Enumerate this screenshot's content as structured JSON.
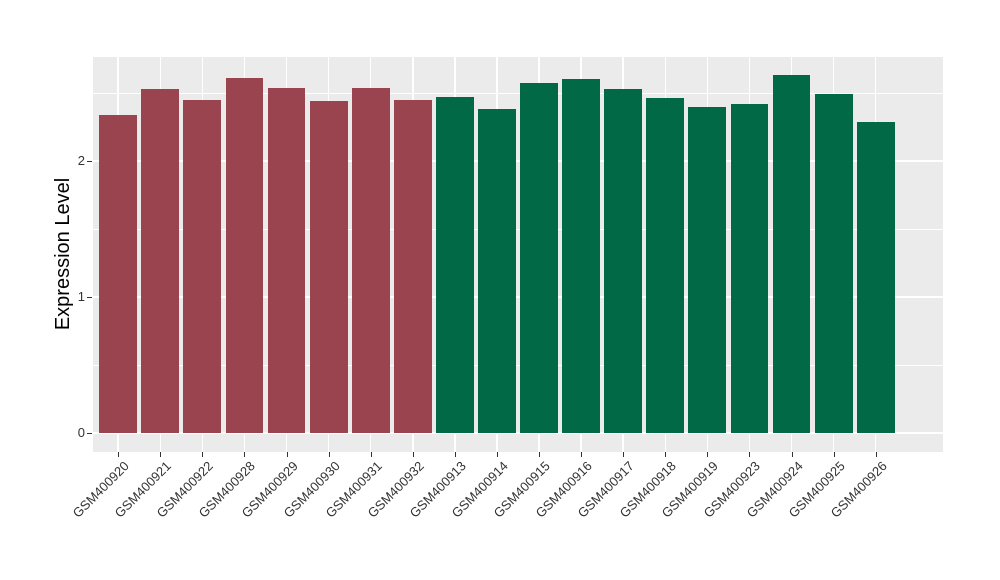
{
  "figure": {
    "background": "#ffffff",
    "panel_background": "#EBEBEB",
    "grid_color": "#ffffff",
    "tick_color": "#333333",
    "axis_text_color": "#333333",
    "axis_title_color": "#000000"
  },
  "chart_data": {
    "type": "bar",
    "title": "",
    "xlabel": "",
    "ylabel": "Expression Level",
    "ylim": [
      0,
      2.76
    ],
    "yticks": [
      0,
      1,
      2
    ],
    "minor_yticks": [
      0.5,
      1.5,
      2.5
    ],
    "grid": true,
    "legend_position": "none",
    "x_label_angle": 45,
    "groups": [
      {
        "name": "maroon-group",
        "color": "#9A4450"
      },
      {
        "name": "green-group",
        "color": "#026946"
      }
    ],
    "bars": [
      {
        "label": "GSM400920",
        "value": 2.34,
        "group": 0
      },
      {
        "label": "GSM400921",
        "value": 2.53,
        "group": 0
      },
      {
        "label": "GSM400922",
        "value": 2.45,
        "group": 0
      },
      {
        "label": "GSM400928",
        "value": 2.61,
        "group": 0
      },
      {
        "label": "GSM400929",
        "value": 2.54,
        "group": 0
      },
      {
        "label": "GSM400930",
        "value": 2.44,
        "group": 0
      },
      {
        "label": "GSM400931",
        "value": 2.54,
        "group": 0
      },
      {
        "label": "GSM400932",
        "value": 2.45,
        "group": 0
      },
      {
        "label": "GSM400913",
        "value": 2.47,
        "group": 1
      },
      {
        "label": "GSM400914",
        "value": 2.38,
        "group": 1
      },
      {
        "label": "GSM400915",
        "value": 2.57,
        "group": 1
      },
      {
        "label": "GSM400916",
        "value": 2.6,
        "group": 1
      },
      {
        "label": "GSM400917",
        "value": 2.53,
        "group": 1
      },
      {
        "label": "GSM400918",
        "value": 2.46,
        "group": 1
      },
      {
        "label": "GSM400919",
        "value": 2.4,
        "group": 1
      },
      {
        "label": "GSM400923",
        "value": 2.42,
        "group": 1
      },
      {
        "label": "GSM400924",
        "value": 2.63,
        "group": 1
      },
      {
        "label": "GSM400925",
        "value": 2.49,
        "group": 1
      },
      {
        "label": "GSM400926",
        "value": 2.29,
        "group": 1
      }
    ]
  },
  "layout_note": ""
}
